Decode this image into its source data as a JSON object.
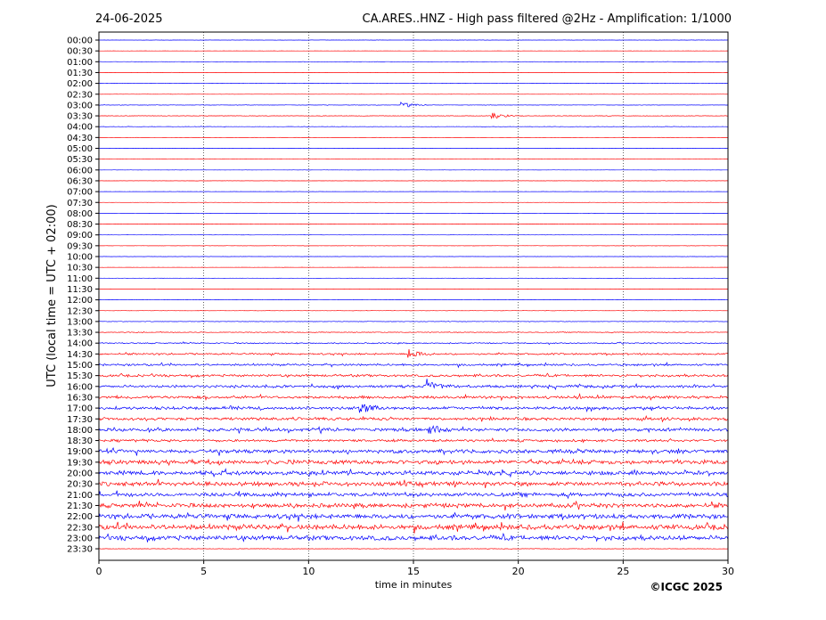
{
  "chart_data": {
    "type": "line",
    "title_left": "24-06-2025",
    "title_right": "CA.ARES..HNZ - High pass filtered @2Hz - Amplification: 1/1000",
    "xlabel": "time in minutes",
    "ylabel": "UTC (local time = UTC + 02:00)",
    "credit": "©ICGC 2025",
    "xlim": [
      0,
      30
    ],
    "x_ticks": [
      "0",
      "5",
      "10",
      "15",
      "20",
      "25",
      "30"
    ],
    "x_tick_values": [
      0,
      5,
      10,
      15,
      20,
      25,
      30
    ],
    "x_gridlines": [
      5,
      10,
      15,
      20,
      25
    ],
    "y_ticks": [
      "00:00",
      "00:30",
      "01:00",
      "01:30",
      "02:00",
      "02:30",
      "03:00",
      "03:30",
      "04:00",
      "04:30",
      "05:00",
      "05:30",
      "06:00",
      "06:30",
      "07:00",
      "07:30",
      "08:00",
      "08:30",
      "09:00",
      "09:30",
      "10:00",
      "10:30",
      "11:00",
      "11:30",
      "12:00",
      "12:30",
      "13:00",
      "13:30",
      "14:00",
      "14:30",
      "15:00",
      "15:30",
      "16:00",
      "16:30",
      "17:00",
      "17:30",
      "18:00",
      "18:30",
      "19:00",
      "19:30",
      "20:00",
      "20:30",
      "21:00",
      "21:30",
      "22:00",
      "22:30",
      "23:00",
      "23:30"
    ],
    "trace_colors": [
      "#0000ff",
      "#ff0000"
    ],
    "trace_noise_levels": [
      0.02,
      0.02,
      0.03,
      0.03,
      0.02,
      0.02,
      0.04,
      0.05,
      0.04,
      0.02,
      0.02,
      0.02,
      0.02,
      0.02,
      0.02,
      0.02,
      0.02,
      0.03,
      0.02,
      0.03,
      0.02,
      0.02,
      0.02,
      0.02,
      0.02,
      0.03,
      0.05,
      0.08,
      0.12,
      0.18,
      0.22,
      0.25,
      0.28,
      0.3,
      0.32,
      0.3,
      0.35,
      0.25,
      0.4,
      0.45,
      0.45,
      0.45,
      0.42,
      0.45,
      0.5,
      0.55,
      0.5,
      0.05
    ],
    "events": [
      {
        "row": "03:00",
        "time": 14.5,
        "amplitude": 0.5
      },
      {
        "row": "03:30",
        "time": 18.8,
        "amplitude": 0.7
      },
      {
        "row": "14:30",
        "time": 14.8,
        "amplitude": 0.9
      },
      {
        "row": "16:00",
        "time": 15.7,
        "amplitude": 1.0
      },
      {
        "row": "18:00",
        "time": 15.8,
        "amplitude": 0.9
      },
      {
        "row": "17:00",
        "time": 12.5,
        "amplitude": 0.8
      }
    ],
    "grid": "vertical dotted at x ticks"
  }
}
